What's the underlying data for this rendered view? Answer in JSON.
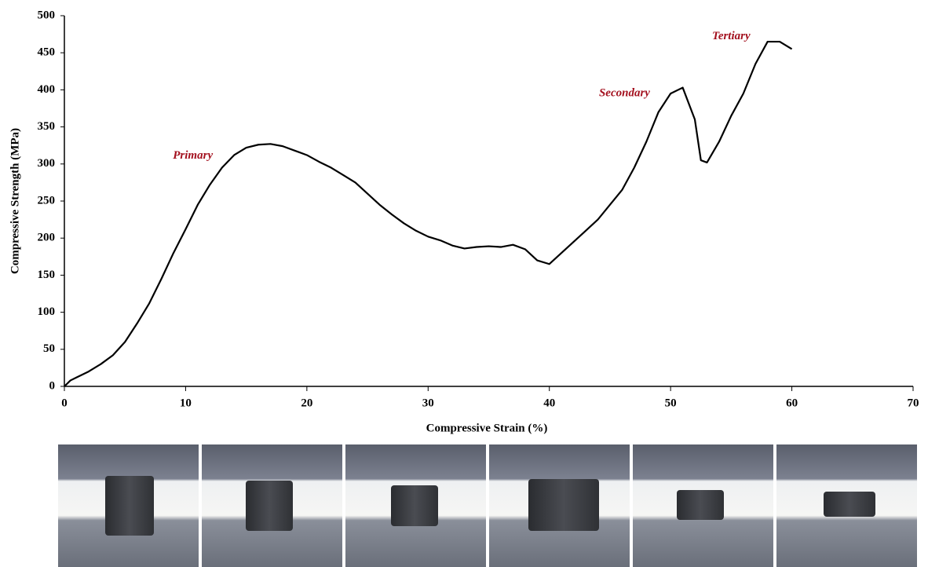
{
  "chart_data": {
    "type": "line",
    "xlabel": "Compressive Strain (%)",
    "ylabel": "Compressive Strength (MPa)",
    "xlim": [
      0,
      70
    ],
    "xticks": [
      0,
      10,
      20,
      30,
      40,
      50,
      60,
      70
    ],
    "ylim": [
      0,
      500
    ],
    "yticks": [
      0,
      50,
      100,
      150,
      200,
      250,
      300,
      350,
      400,
      450,
      500
    ],
    "grid": false,
    "series": [
      {
        "color": "#000000",
        "x": [
          0,
          0.5,
          1,
          2,
          3,
          4,
          5,
          6,
          7,
          8,
          9,
          10,
          11,
          12,
          13,
          14,
          15,
          16,
          17,
          18,
          19,
          20,
          21,
          22,
          23,
          24,
          25,
          26,
          27,
          28,
          29,
          30,
          31,
          32,
          33,
          34,
          35,
          36,
          37,
          38,
          39,
          40,
          41,
          42,
          43,
          44,
          45,
          46,
          47,
          48,
          49,
          50,
          51,
          52,
          52.5,
          53,
          54,
          55,
          56,
          57,
          58,
          59,
          60
        ],
        "values": [
          0,
          8,
          12,
          20,
          30,
          42,
          60,
          85,
          112,
          145,
          180,
          212,
          245,
          272,
          295,
          312,
          322,
          326,
          327,
          324,
          318,
          312,
          303,
          295,
          285,
          275,
          260,
          245,
          232,
          220,
          210,
          202,
          197,
          190,
          186,
          188,
          189,
          188,
          191,
          185,
          170,
          165,
          180,
          195,
          210,
          225,
          245,
          265,
          295,
          330,
          370,
          395,
          403,
          360,
          305,
          302,
          330,
          365,
          395,
          435,
          465,
          465,
          455
        ]
      }
    ],
    "annotations": [
      {
        "text": "Primary",
        "x": 10.6,
        "y": 311
      },
      {
        "text": "Secondary",
        "x": 46.2,
        "y": 395
      },
      {
        "text": "Tertiary",
        "x": 55,
        "y": 472
      }
    ]
  }
}
